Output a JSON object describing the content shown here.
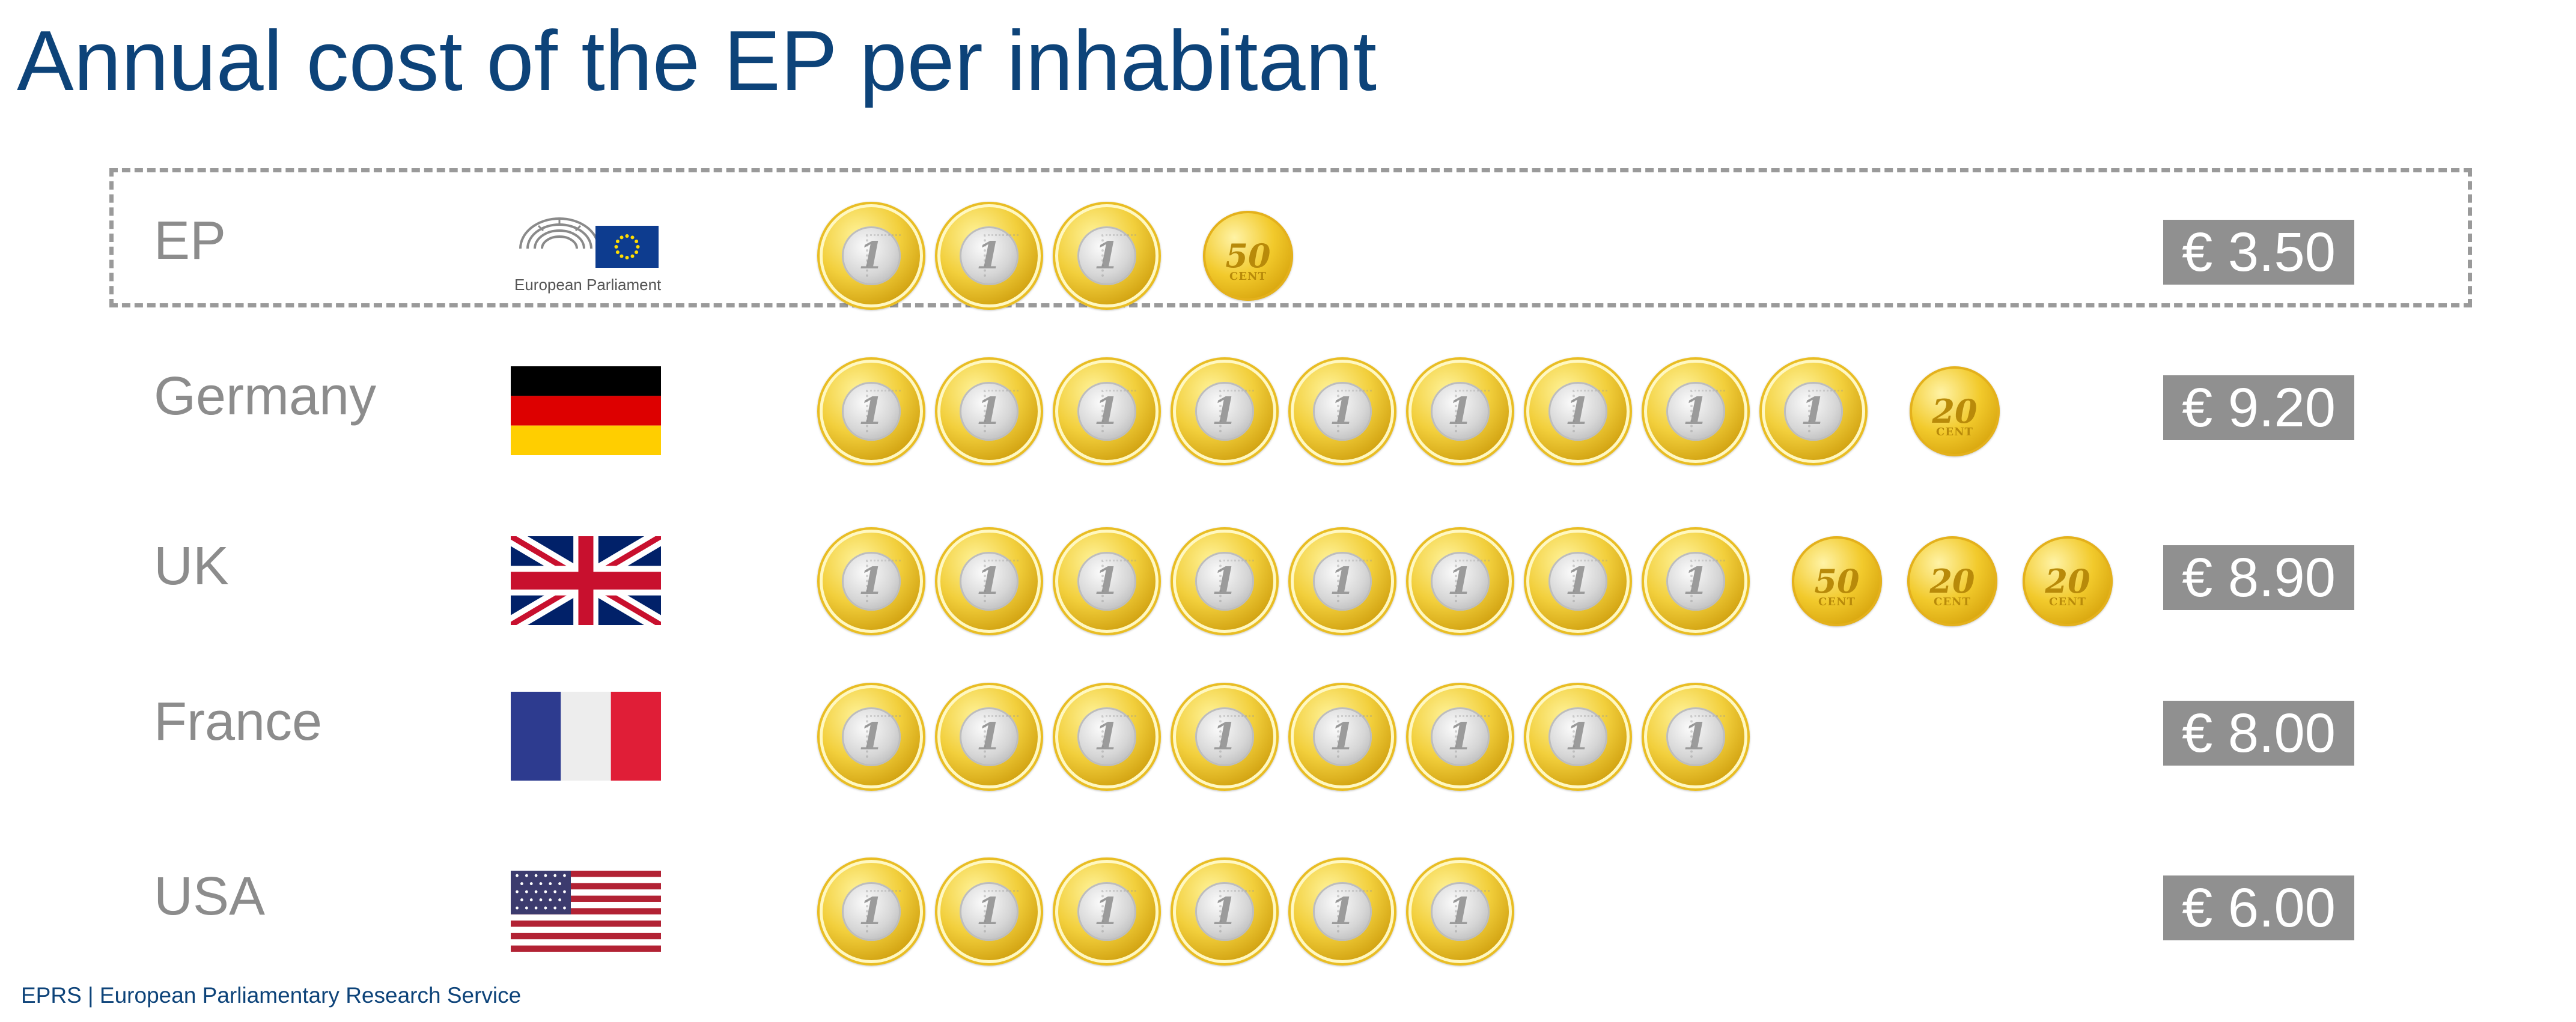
{
  "title": "Annual cost of the EP per inhabitant",
  "footer": "EPRS | European Parliamentary Research Service",
  "ep_logo_text": "European Parliament",
  "colors": {
    "title": "#0d4379",
    "label": "#8c8c8c",
    "value_box": "#909090",
    "value_text": "#ffffff",
    "highlight_border": "#9a9a9a",
    "coin_gold": "#f2cf3c",
    "coin_silver": "#d6d6d6"
  },
  "coin_labels": {
    "euro": "1",
    "cent50": "50",
    "cent20": "20",
    "cent_word": "CENT"
  },
  "rows": [
    {
      "label": "EP",
      "value_label": "€ 3.50",
      "flag": "european-parliament-logo",
      "highlighted": true
    },
    {
      "label": "Germany",
      "value_label": "€ 9.20",
      "flag": "germany-flag",
      "highlighted": false
    },
    {
      "label": "UK",
      "value_label": "€ 8.90",
      "flag": "uk-flag",
      "highlighted": false
    },
    {
      "label": "France",
      "value_label": "€ 8.00",
      "flag": "france-flag",
      "highlighted": false
    },
    {
      "label": "USA",
      "value_label": "€ 6.00",
      "flag": "usa-flag",
      "highlighted": false
    }
  ],
  "chart_data": {
    "type": "bar",
    "title": "Annual cost of the EP per inhabitant",
    "categories": [
      "EP",
      "Germany",
      "UK",
      "France",
      "USA"
    ],
    "values": [
      3.5,
      9.2,
      8.9,
      8.0,
      6.0
    ],
    "unit": "€",
    "coins": [
      {
        "category": "EP",
        "euro_coins": 3,
        "cent_coins": [
          50
        ]
      },
      {
        "category": "Germany",
        "euro_coins": 9,
        "cent_coins": [
          20
        ]
      },
      {
        "category": "UK",
        "euro_coins": 8,
        "cent_coins": [
          50,
          20,
          20
        ]
      },
      {
        "category": "France",
        "euro_coins": 8,
        "cent_coins": []
      },
      {
        "category": "USA",
        "euro_coins": 6,
        "cent_coins": []
      }
    ]
  }
}
